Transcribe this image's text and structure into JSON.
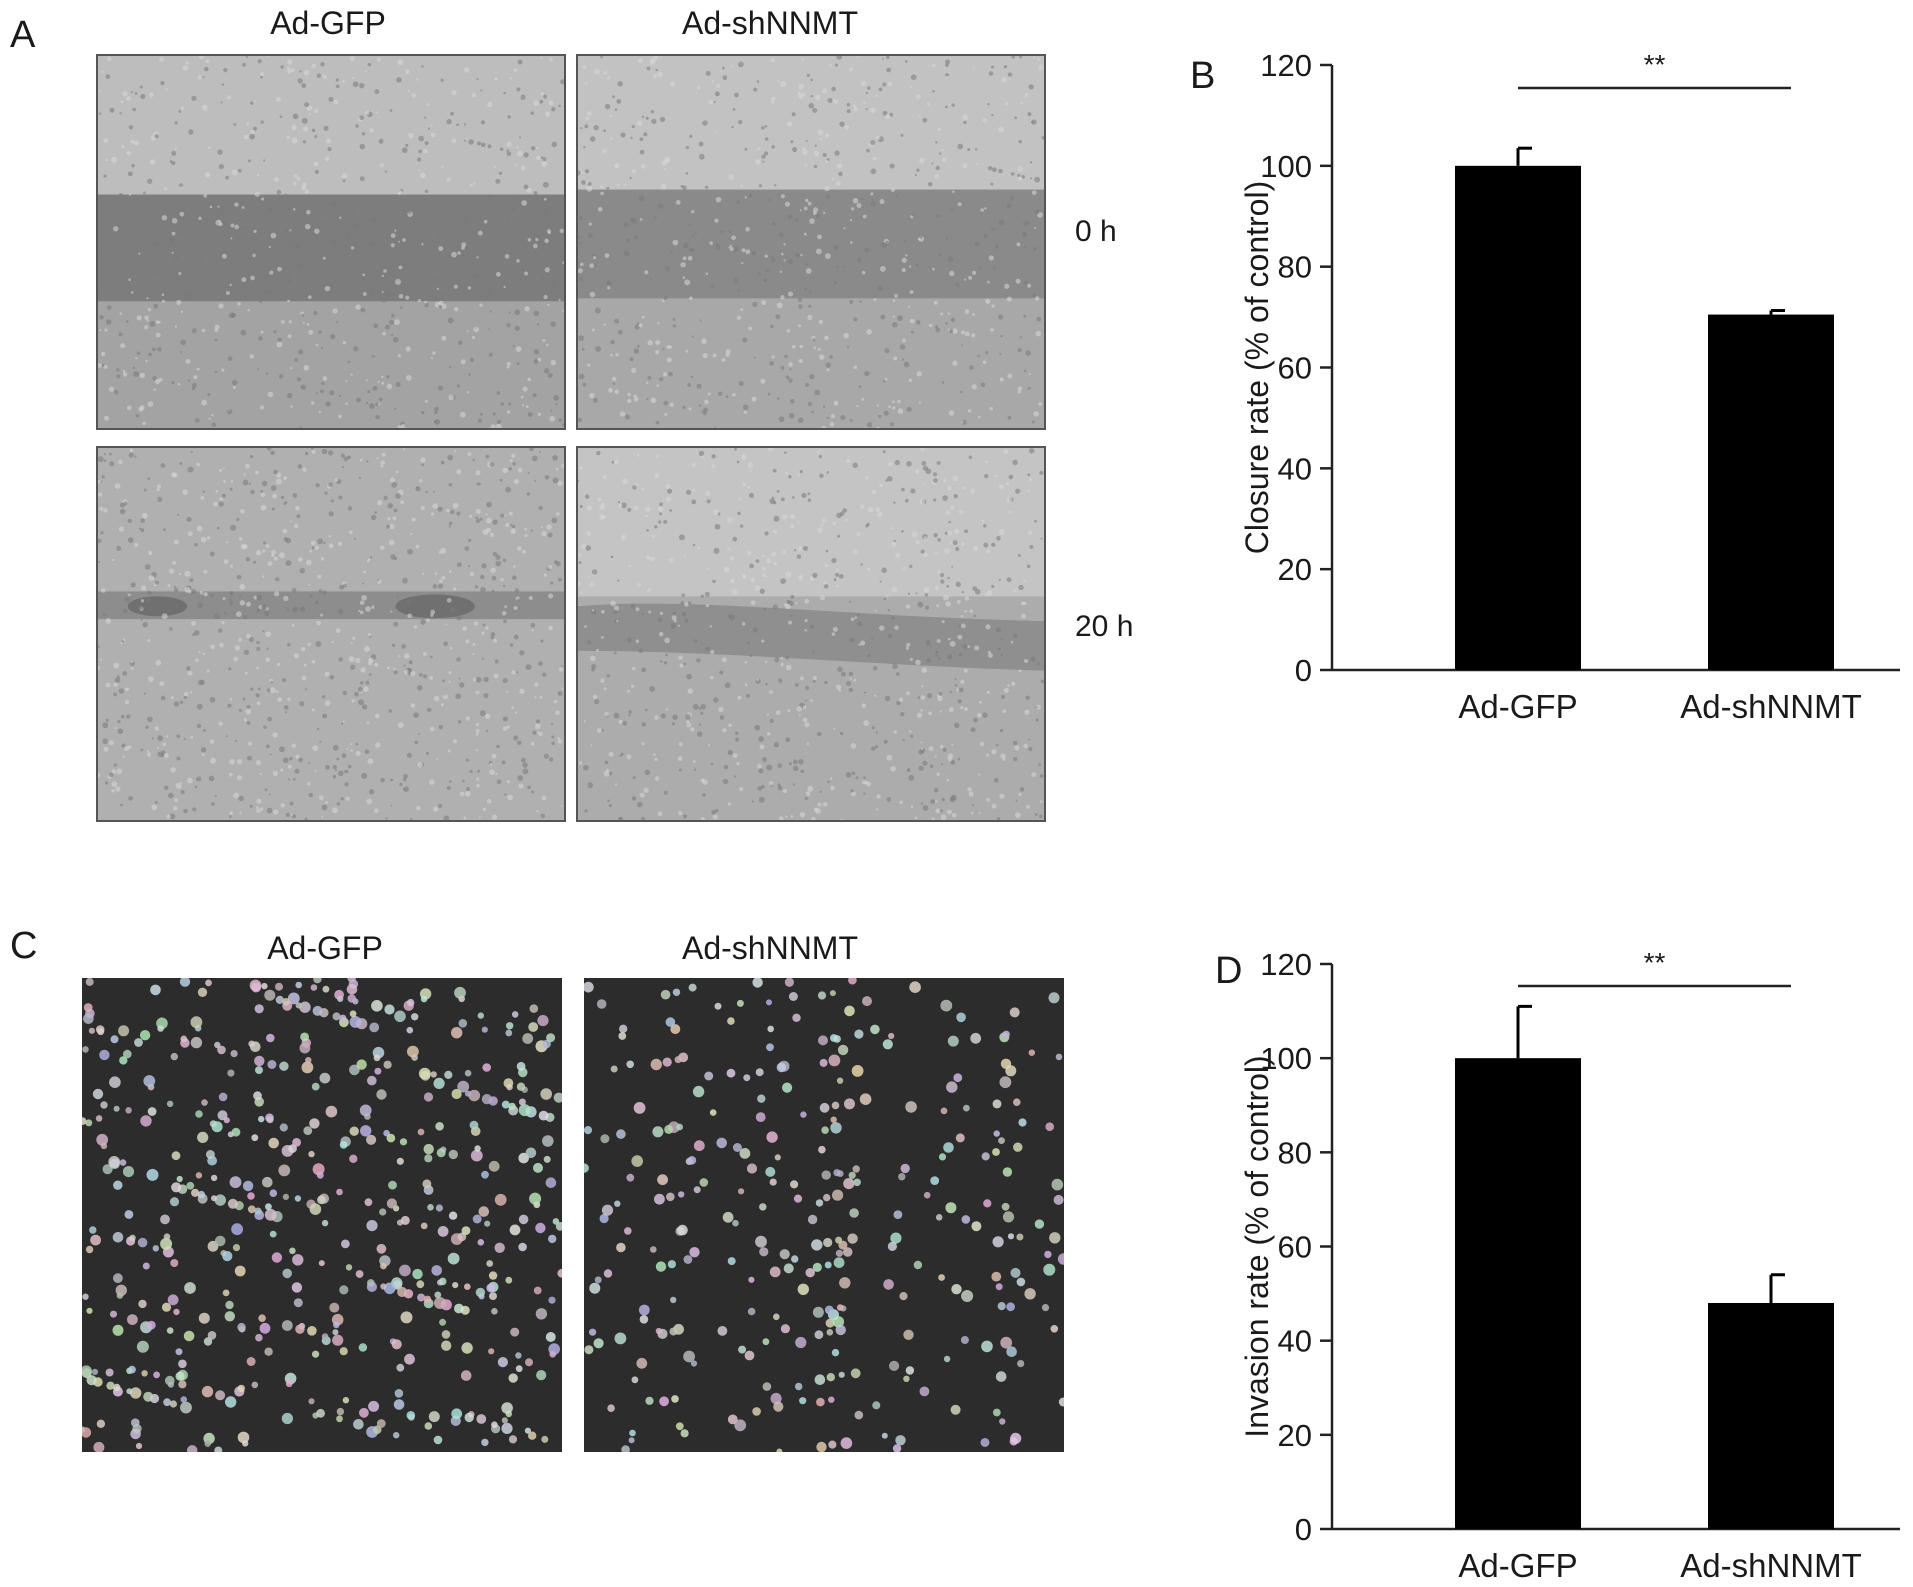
{
  "panels": {
    "a": {
      "letter": "A",
      "columns": [
        "Ad-GFP",
        "Ad-shNNMT"
      ],
      "rows": [
        "0 h",
        "20 h"
      ]
    },
    "b": {
      "letter": "B"
    },
    "c": {
      "letter": "C",
      "columns": [
        "Ad-GFP",
        "Ad-shNNMT"
      ]
    },
    "d": {
      "letter": "D"
    }
  },
  "chart_data": [
    {
      "type": "bar",
      "panel": "B",
      "categories": [
        "Ad-GFP",
        "Ad-shNNMT"
      ],
      "values": [
        100,
        70.5
      ],
      "error": [
        3.5,
        0.8
      ],
      "ylabel": "Closure rate (% of control)",
      "ylim": [
        0,
        120
      ],
      "yticks": [
        0,
        20,
        40,
        60,
        80,
        100,
        120
      ],
      "significance": "**",
      "bar_color": "#000000",
      "grid": false
    },
    {
      "type": "bar",
      "panel": "D",
      "categories": [
        "Ad-GFP",
        "Ad-shNNMT"
      ],
      "values": [
        100,
        48
      ],
      "error": [
        11,
        6
      ],
      "ylabel": "Invasion rate (% of control)",
      "ylim": [
        0,
        120
      ],
      "yticks": [
        0,
        20,
        40,
        60,
        80,
        100,
        120
      ],
      "significance": "**",
      "bar_color": "#000000",
      "grid": false
    }
  ]
}
